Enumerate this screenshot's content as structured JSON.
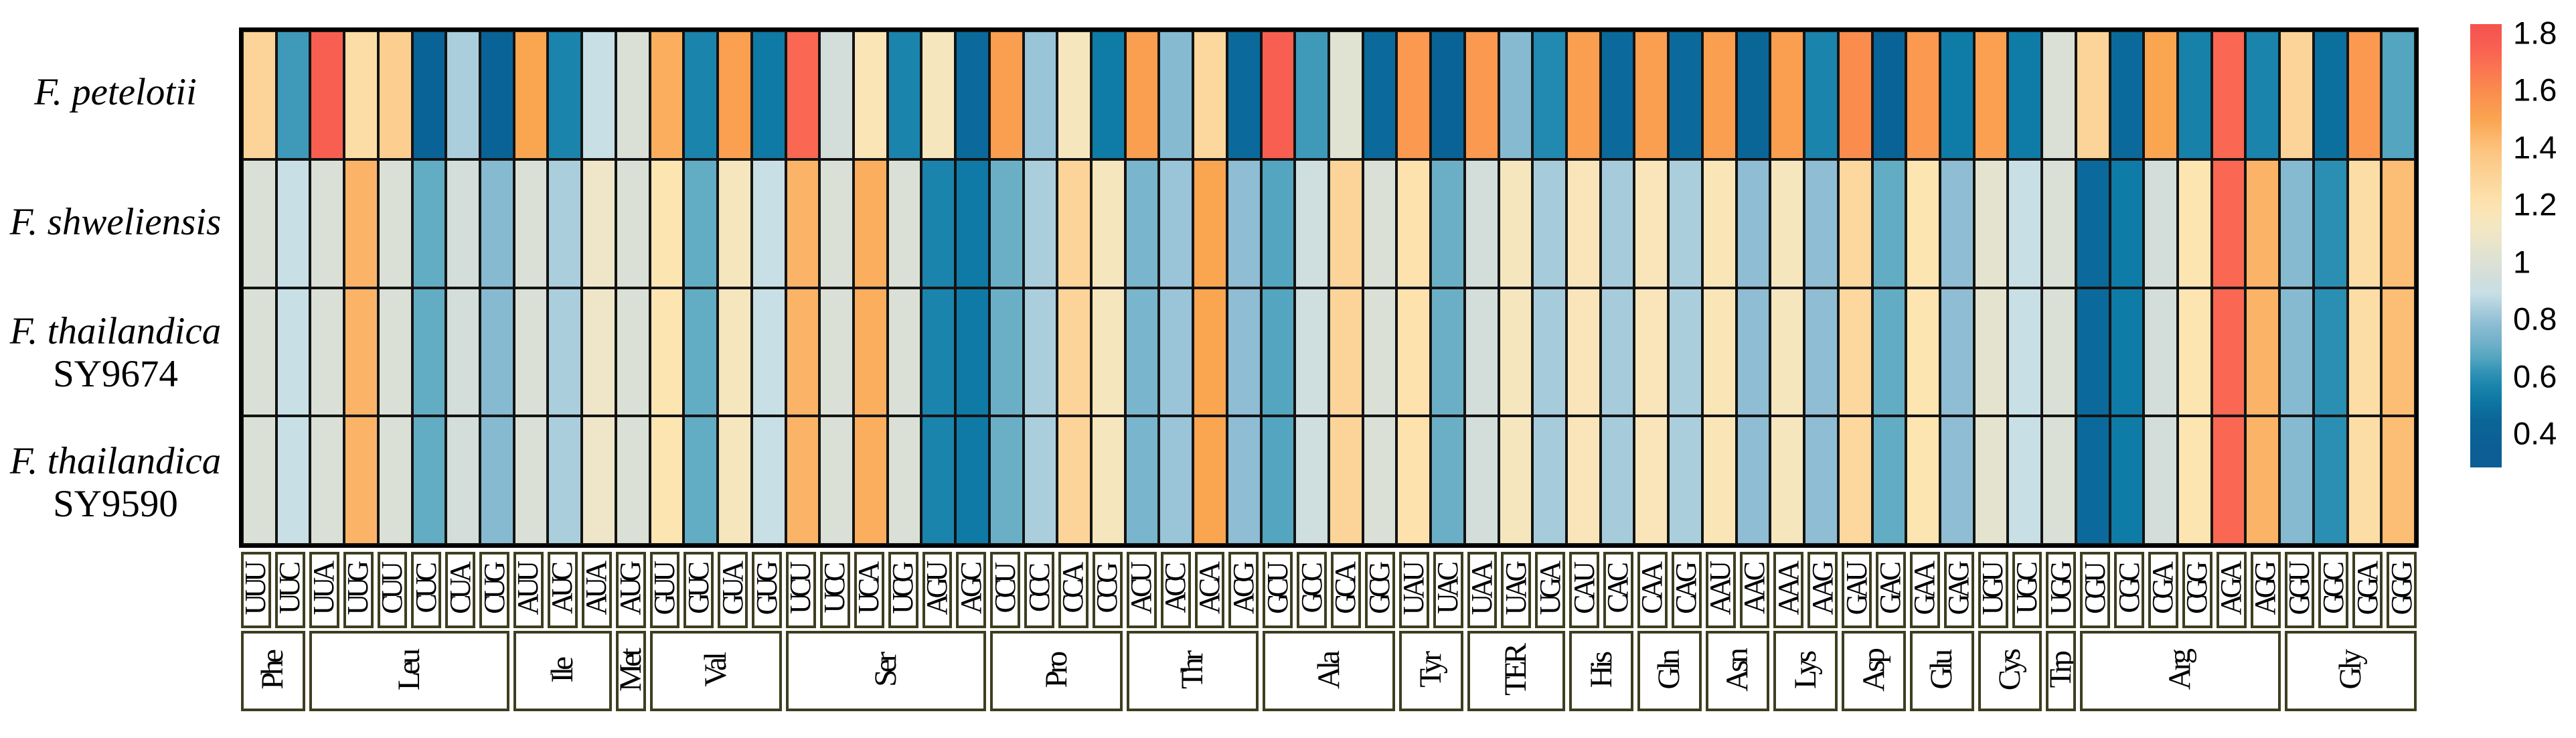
{
  "figure": {
    "background": "#ffffff",
    "cell_border_color": "#131313",
    "outer_border_color": "#000000",
    "label_box_border_color": "#3e3e20",
    "text_color": "#000000"
  },
  "chart_data": {
    "type": "heatmap",
    "title": "",
    "xlabel": "",
    "ylabel": "",
    "legend_position": "right",
    "grid": false,
    "categories": [
      "UUU",
      "UUC",
      "UUA",
      "UUG",
      "CUU",
      "CUC",
      "CUA",
      "CUG",
      "AUU",
      "AUC",
      "AUA",
      "AUG",
      "GUU",
      "GUC",
      "GUA",
      "GUG",
      "UCU",
      "UCC",
      "UCA",
      "UCG",
      "AGU",
      "AGC",
      "CCU",
      "CCC",
      "CCA",
      "CCG",
      "ACU",
      "ACC",
      "ACA",
      "ACG",
      "GCU",
      "GCC",
      "GCA",
      "GCG",
      "UAU",
      "UAC",
      "UAA",
      "UAG",
      "UGA",
      "CAU",
      "CAC",
      "CAA",
      "CAG",
      "AAU",
      "AAC",
      "AAA",
      "AAG",
      "GAU",
      "GAC",
      "GAA",
      "GAG",
      "UGU",
      "UGC",
      "UGG",
      "CGU",
      "CGC",
      "CGA",
      "CGG",
      "AGA",
      "AGG",
      "GGU",
      "GGC",
      "GGA",
      "GGG"
    ],
    "amino_groups": [
      {
        "label": "Phe",
        "count": 2
      },
      {
        "label": "Leu",
        "count": 6
      },
      {
        "label": "Ile",
        "count": 3
      },
      {
        "label": "Met",
        "count": 1
      },
      {
        "label": "Val",
        "count": 4
      },
      {
        "label": "Ser",
        "count": 6
      },
      {
        "label": "Pro",
        "count": 4
      },
      {
        "label": "Thr",
        "count": 4
      },
      {
        "label": "Ala",
        "count": 4
      },
      {
        "label": "Tyr",
        "count": 2
      },
      {
        "label": "TER",
        "count": 3
      },
      {
        "label": "His",
        "count": 2
      },
      {
        "label": "Gln",
        "count": 2
      },
      {
        "label": "Asn",
        "count": 2
      },
      {
        "label": "Lys",
        "count": 2
      },
      {
        "label": "Asp",
        "count": 2
      },
      {
        "label": "Glu",
        "count": 2
      },
      {
        "label": "Cys",
        "count": 2
      },
      {
        "label": "Trp",
        "count": 1
      },
      {
        "label": "Arg",
        "count": 6
      },
      {
        "label": "Gly",
        "count": 4
      }
    ],
    "series": [
      {
        "name": "F. petelotii",
        "label_lines": [
          {
            "text": "F. petelotii",
            "italic": true
          }
        ],
        "values": [
          1.3,
          0.65,
          1.76,
          1.25,
          1.33,
          0.45,
          0.85,
          0.45,
          1.5,
          0.58,
          0.9,
          1.0,
          1.47,
          0.58,
          1.52,
          0.54,
          1.72,
          0.96,
          1.18,
          0.58,
          1.15,
          0.48,
          1.53,
          0.82,
          1.15,
          0.55,
          1.53,
          0.78,
          1.28,
          0.48,
          1.76,
          0.65,
          1.03,
          0.48,
          1.55,
          0.45,
          1.55,
          0.78,
          0.6,
          1.53,
          0.48,
          1.53,
          0.48,
          1.53,
          0.46,
          1.53,
          0.58,
          1.6,
          0.45,
          1.55,
          0.55,
          1.52,
          0.55,
          1.0,
          1.3,
          0.48,
          1.5,
          0.57,
          1.72,
          0.58,
          1.3,
          0.5,
          1.55,
          0.68
        ]
      },
      {
        "name": "F. shweliensis",
        "label_lines": [
          {
            "text": "F. shweliensis",
            "italic": true
          }
        ],
        "values": [
          1.0,
          0.9,
          1.0,
          1.45,
          1.0,
          0.7,
          0.96,
          0.78,
          1.0,
          0.85,
          1.1,
          1.0,
          1.2,
          0.7,
          1.15,
          0.9,
          1.45,
          1.0,
          1.47,
          1.0,
          0.58,
          0.54,
          0.72,
          0.85,
          1.3,
          1.15,
          0.75,
          0.82,
          1.5,
          0.8,
          0.68,
          0.94,
          1.3,
          1.0,
          1.22,
          0.72,
          0.96,
          1.15,
          0.84,
          1.17,
          0.84,
          1.17,
          0.85,
          1.18,
          0.8,
          1.15,
          0.8,
          1.28,
          0.7,
          1.2,
          0.8,
          1.05,
          0.9,
          1.0,
          0.48,
          0.55,
          0.96,
          1.2,
          1.72,
          1.45,
          0.78,
          0.62,
          1.25,
          1.42
        ]
      },
      {
        "name": "F. thailandica SY9674",
        "label_lines": [
          {
            "text": "F. thailandica",
            "italic": true
          },
          {
            "text": "SY9674",
            "italic": false
          }
        ],
        "values": [
          1.0,
          0.9,
          1.0,
          1.45,
          1.0,
          0.7,
          0.96,
          0.78,
          1.0,
          0.85,
          1.1,
          1.0,
          1.2,
          0.7,
          1.15,
          0.9,
          1.45,
          1.0,
          1.47,
          1.0,
          0.58,
          0.54,
          0.72,
          0.85,
          1.3,
          1.15,
          0.75,
          0.82,
          1.5,
          0.8,
          0.68,
          0.94,
          1.3,
          1.0,
          1.22,
          0.72,
          0.96,
          1.15,
          0.84,
          1.17,
          0.84,
          1.17,
          0.85,
          1.18,
          0.8,
          1.15,
          0.8,
          1.28,
          0.7,
          1.2,
          0.8,
          1.05,
          0.9,
          1.0,
          0.48,
          0.55,
          0.96,
          1.2,
          1.72,
          1.45,
          0.78,
          0.62,
          1.25,
          1.42
        ]
      },
      {
        "name": "F. thailandica SY9590",
        "label_lines": [
          {
            "text": "F. thailandica",
            "italic": true
          },
          {
            "text": "SY9590",
            "italic": false
          }
        ],
        "values": [
          1.0,
          0.9,
          1.0,
          1.45,
          1.0,
          0.7,
          0.96,
          0.78,
          1.0,
          0.85,
          1.1,
          1.0,
          1.2,
          0.7,
          1.15,
          0.9,
          1.45,
          1.0,
          1.47,
          1.0,
          0.58,
          0.54,
          0.72,
          0.85,
          1.3,
          1.15,
          0.75,
          0.82,
          1.5,
          0.8,
          0.68,
          0.94,
          1.3,
          1.0,
          1.22,
          0.72,
          0.96,
          1.15,
          0.84,
          1.17,
          0.84,
          1.17,
          0.85,
          1.18,
          0.8,
          1.15,
          0.8,
          1.28,
          0.7,
          1.2,
          0.8,
          1.05,
          0.9,
          1.0,
          0.48,
          0.55,
          0.96,
          1.2,
          1.72,
          1.45,
          0.78,
          0.62,
          1.25,
          1.42
        ]
      }
    ],
    "colorbar": {
      "min": 0.4,
      "max": 1.8,
      "tick_values": [
        1.8,
        1.6,
        1.4,
        1.2,
        1.0,
        0.8,
        0.6,
        0.4
      ],
      "tick_labels": [
        "1.8",
        "1.6",
        "1.4",
        "1.2",
        "1",
        "0.8",
        "0.6",
        "0.4"
      ]
    },
    "color_scale_stops": [
      {
        "v": 0.35,
        "c": "#0D5E94"
      },
      {
        "v": 0.45,
        "c": "#0A6396"
      },
      {
        "v": 0.55,
        "c": "#0F7CA7"
      },
      {
        "v": 0.62,
        "c": "#2A8FB3"
      },
      {
        "v": 0.7,
        "c": "#62ACC4"
      },
      {
        "v": 0.8,
        "c": "#8FBDD4"
      },
      {
        "v": 0.9,
        "c": "#C8DFE6"
      },
      {
        "v": 0.96,
        "c": "#D3DEDA"
      },
      {
        "v": 1.02,
        "c": "#DEE1D3"
      },
      {
        "v": 1.1,
        "c": "#EFE6C9"
      },
      {
        "v": 1.2,
        "c": "#FDE5B2"
      },
      {
        "v": 1.3,
        "c": "#FCD499"
      },
      {
        "v": 1.4,
        "c": "#FCC37D"
      },
      {
        "v": 1.5,
        "c": "#FAA550"
      },
      {
        "v": 1.6,
        "c": "#FA8C4E"
      },
      {
        "v": 1.72,
        "c": "#FA6752"
      },
      {
        "v": 1.82,
        "c": "#F5524F"
      }
    ]
  }
}
